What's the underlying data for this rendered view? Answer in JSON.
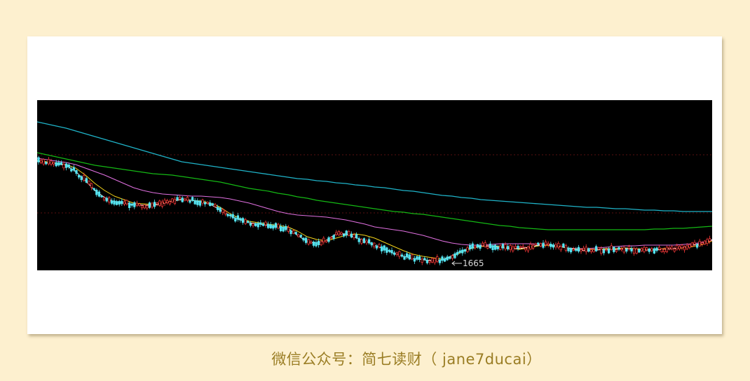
{
  "caption": "微信公众号：简七读财（ jane7ducai）",
  "chart_data": {
    "type": "candlestick",
    "low_label": "1665",
    "colors": {
      "background": "#000000",
      "up": "#ff3a3a",
      "down": "#54e3f0",
      "ma_short": "#ffffff",
      "ma_mid": "#f2d21a",
      "ma_long": "#e070e0",
      "ma_longer": "#14b814",
      "ma_longest": "#1fb3c8",
      "grid": "#5a1010"
    },
    "series": [
      {
        "key": "ma_longest",
        "values": [
          174,
          177,
          180,
          183,
          187,
          191,
          195,
          199,
          203,
          207,
          211,
          215,
          219,
          223,
          227,
          231,
          233,
          235,
          237,
          239,
          241,
          243,
          245,
          247,
          249,
          251,
          253,
          255,
          256,
          258,
          259,
          261,
          262,
          264,
          265,
          267,
          268,
          270,
          272,
          273,
          275,
          277,
          279,
          280,
          282,
          283,
          285,
          286,
          287,
          288,
          289,
          290,
          291,
          292,
          293,
          294,
          295,
          296,
          296,
          297,
          298,
          298,
          299,
          300,
          300,
          301,
          301,
          302,
          302,
          302,
          302
        ]
      },
      {
        "key": "ma_longer",
        "values": [
          218,
          221,
          224,
          227,
          230,
          233,
          236,
          238,
          240,
          242,
          244,
          246,
          248,
          249,
          250,
          252,
          254,
          256,
          258,
          260,
          263,
          266,
          269,
          271,
          273,
          276,
          278,
          281,
          283,
          286,
          288,
          290,
          292,
          294,
          296,
          298,
          300,
          302,
          303,
          305,
          306,
          308,
          310,
          312,
          314,
          316,
          318,
          320,
          322,
          323,
          325,
          326,
          327,
          328,
          328,
          328,
          328,
          328,
          328,
          328,
          328,
          328,
          328,
          328,
          327,
          327,
          326,
          326,
          325,
          324,
          323
        ]
      },
      {
        "key": "ma_long",
        "values": [
          226,
          228,
          230,
          232,
          235,
          240,
          245,
          250,
          256,
          262,
          268,
          272,
          275,
          277,
          278,
          279,
          280,
          280,
          281,
          282,
          284,
          287,
          290,
          294,
          298,
          302,
          305,
          307,
          308,
          309,
          310,
          312,
          314,
          317,
          320,
          324,
          326,
          328,
          330,
          333,
          336,
          340,
          344,
          347,
          349,
          350,
          350,
          349,
          348,
          348,
          348,
          348,
          349,
          350,
          352,
          354,
          355,
          355,
          354,
          353,
          352,
          351,
          351,
          350,
          350,
          350,
          350,
          349,
          348,
          346,
          343
        ]
      },
      {
        "key": "ma_mid",
        "values": [
          229,
          231,
          233,
          235,
          240,
          250,
          262,
          272,
          280,
          285,
          290,
          291,
          292,
          290,
          287,
          285,
          286,
          287,
          290,
          296,
          305,
          312,
          316,
          318,
          320,
          322,
          324,
          330,
          338,
          342,
          344,
          340,
          336,
          334,
          336,
          340,
          346,
          352,
          358,
          363,
          366,
          368,
          370,
          367,
          360,
          355,
          352,
          351,
          352,
          354,
          356,
          354,
          351,
          350,
          352,
          354,
          356,
          356,
          356,
          355,
          355,
          354,
          355,
          356,
          356,
          355,
          355,
          354,
          352,
          349,
          344
        ]
      },
      {
        "key": "ma_short",
        "values": [
          230,
          232,
          234,
          236,
          245,
          258,
          272,
          282,
          288,
          290,
          292,
          293,
          293,
          291,
          287,
          285,
          286,
          288,
          292,
          300,
          308,
          314,
          318,
          320,
          322,
          324,
          326,
          336,
          345,
          347,
          343,
          334,
          334,
          339,
          344,
          350,
          356,
          362,
          366,
          369,
          371,
          372,
          371,
          365,
          358,
          354,
          351,
          351,
          353,
          355,
          355,
          353,
          350,
          349,
          351,
          354,
          357,
          358,
          357,
          356,
          356,
          355,
          356,
          357,
          357,
          356,
          355,
          353,
          350,
          347,
          342
        ]
      }
    ]
  }
}
